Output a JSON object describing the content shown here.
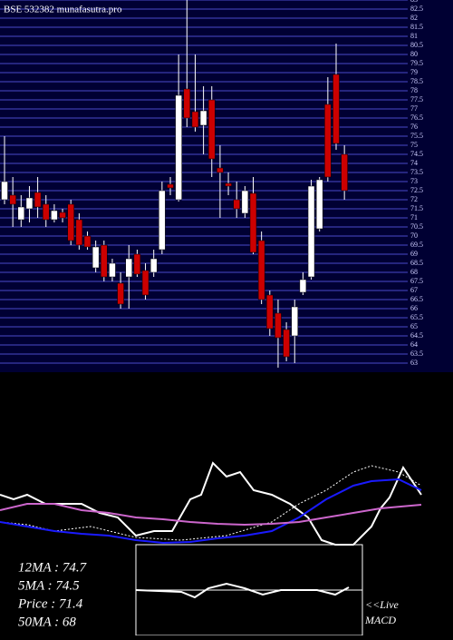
{
  "chart_data": [
    {
      "type": "candlestick",
      "title": "BSE 532382  munafasutra.pro",
      "ylim": [
        62.5,
        83
      ],
      "yticks": [
        63,
        63.5,
        64,
        64.5,
        65,
        65.5,
        66,
        66.5,
        67,
        67.5,
        68,
        68.5,
        69,
        69.5,
        70,
        70.5,
        71,
        71.5,
        72,
        72.5,
        73,
        73.5,
        74,
        74.5,
        75,
        75.5,
        76,
        76.5,
        77,
        77.5,
        78,
        78.5,
        79,
        79.5,
        80,
        80.5,
        81,
        81.5,
        82,
        82.5,
        83
      ],
      "grid": true,
      "up_color": "#ffffff",
      "down_color": "#cc0000",
      "open": [
        72.0,
        72.25,
        70.9,
        71.5,
        72.4,
        71.75,
        70.9,
        71.3,
        71.75,
        70.9,
        70.0,
        68.25,
        69.5,
        67.75,
        67.4,
        67.75,
        69.0,
        68.1,
        68.0,
        69.25,
        72.85,
        72.0,
        78.1,
        76.85,
        76.1,
        77.5,
        73.75,
        72.9,
        72.0,
        71.25,
        72.35,
        69.75,
        66.75,
        65.75,
        64.85,
        64.5,
        66.9,
        67.75,
        70.4,
        77.25,
        78.9,
        74.5
      ],
      "high": [
        75.5,
        73.25,
        72.25,
        72.75,
        73.25,
        72.25,
        71.75,
        71.5,
        72.0,
        71.25,
        70.25,
        69.75,
        69.75,
        68.75,
        68.0,
        69.5,
        69.25,
        68.5,
        69.25,
        73.0,
        73.25,
        80.0,
        83.0,
        80.0,
        78.25,
        78.25,
        75.0,
        73.5,
        73.0,
        72.75,
        73.25,
        70.25,
        67.0,
        66.5,
        65.25,
        66.5,
        68.0,
        73.1,
        73.25,
        78.75,
        80.6,
        75.0
      ],
      "low": [
        71.75,
        70.5,
        70.5,
        70.75,
        71.0,
        70.5,
        70.75,
        70.75,
        69.5,
        69.25,
        69.25,
        68.0,
        67.5,
        67.5,
        66.0,
        66.0,
        67.75,
        66.5,
        67.75,
        69.0,
        72.25,
        71.9,
        76.0,
        75.75,
        74.5,
        73.25,
        71.0,
        72.25,
        71.0,
        71.0,
        69.0,
        66.25,
        64.5,
        62.75,
        63.1,
        63.0,
        66.75,
        67.6,
        70.25,
        73.0,
        74.75,
        72.0
      ],
      "close": [
        73.0,
        71.75,
        71.6,
        72.1,
        71.6,
        70.9,
        71.4,
        71.0,
        69.75,
        69.5,
        69.4,
        69.4,
        67.75,
        68.5,
        66.25,
        68.75,
        67.9,
        66.75,
        68.75,
        72.5,
        72.65,
        77.75,
        76.5,
        76.0,
        76.9,
        74.25,
        73.5,
        72.75,
        71.5,
        72.5,
        69.1,
        66.5,
        64.9,
        64.4,
        63.35,
        66.1,
        67.6,
        72.75,
        73.1,
        73.25,
        75.1,
        72.5
      ]
    },
    {
      "type": "line",
      "xlim": [
        0,
        500
      ],
      "ylim": [
        0,
        100
      ],
      "series": [
        {
          "color": "#ffffff",
          "dashed": false,
          "x": [
            0,
            15,
            30,
            50,
            70,
            90,
            110,
            130,
            150,
            170,
            190,
            210,
            222,
            235,
            250,
            265,
            280,
            300,
            320,
            340,
            355,
            370,
            390,
            410,
            420,
            430,
            445,
            465
          ],
          "values": [
            55,
            50,
            55,
            45,
            45,
            45,
            35,
            30,
            10,
            15,
            15,
            50,
            55,
            90,
            75,
            80,
            60,
            55,
            45,
            30,
            5,
            0,
            0,
            20,
            40,
            52,
            85,
            55
          ]
        },
        {
          "color": "#ffffff",
          "dashed": true,
          "x": [
            0,
            30,
            60,
            100,
            150,
            200,
            250,
            300,
            330,
            360,
            390,
            410,
            440,
            465
          ],
          "values": [
            25,
            22,
            15,
            20,
            8,
            5,
            10,
            25,
            45,
            60,
            80,
            87,
            80,
            65
          ]
        },
        {
          "color": "#1a1aff",
          "dashed": false,
          "x": [
            0,
            30,
            60,
            90,
            120,
            150,
            180,
            210,
            240,
            270,
            300,
            330,
            360,
            390,
            410,
            440,
            465
          ],
          "values": [
            25,
            20,
            15,
            12,
            10,
            5,
            2,
            3,
            7,
            10,
            15,
            30,
            50,
            65,
            70,
            72,
            60
          ]
        },
        {
          "color": "#cc66cc",
          "dashed": false,
          "x": [
            0,
            30,
            60,
            90,
            120,
            150,
            180,
            210,
            240,
            270,
            300,
            330,
            360,
            390,
            420,
            465
          ],
          "values": [
            38,
            45,
            45,
            38,
            35,
            30,
            28,
            25,
            23,
            22,
            23,
            25,
            30,
            35,
            40,
            44
          ]
        }
      ],
      "labels": [
        "12MA : 74.7",
        "5MA : 74.5",
        "Price  : 71.4",
        "50MA : 68"
      ]
    },
    {
      "type": "macd",
      "title": "MACD",
      "link": "<<Live",
      "xlim": [
        150,
        400
      ],
      "ylim": [
        -50,
        50
      ],
      "zero": 0,
      "x": [
        150,
        200,
        215,
        230,
        250,
        270,
        290,
        310,
        350,
        370,
        385
      ],
      "values": [
        0,
        -2,
        -8,
        2,
        7,
        2,
        -5,
        0,
        0,
        -5,
        3
      ],
      "color": "#ffffff"
    }
  ]
}
